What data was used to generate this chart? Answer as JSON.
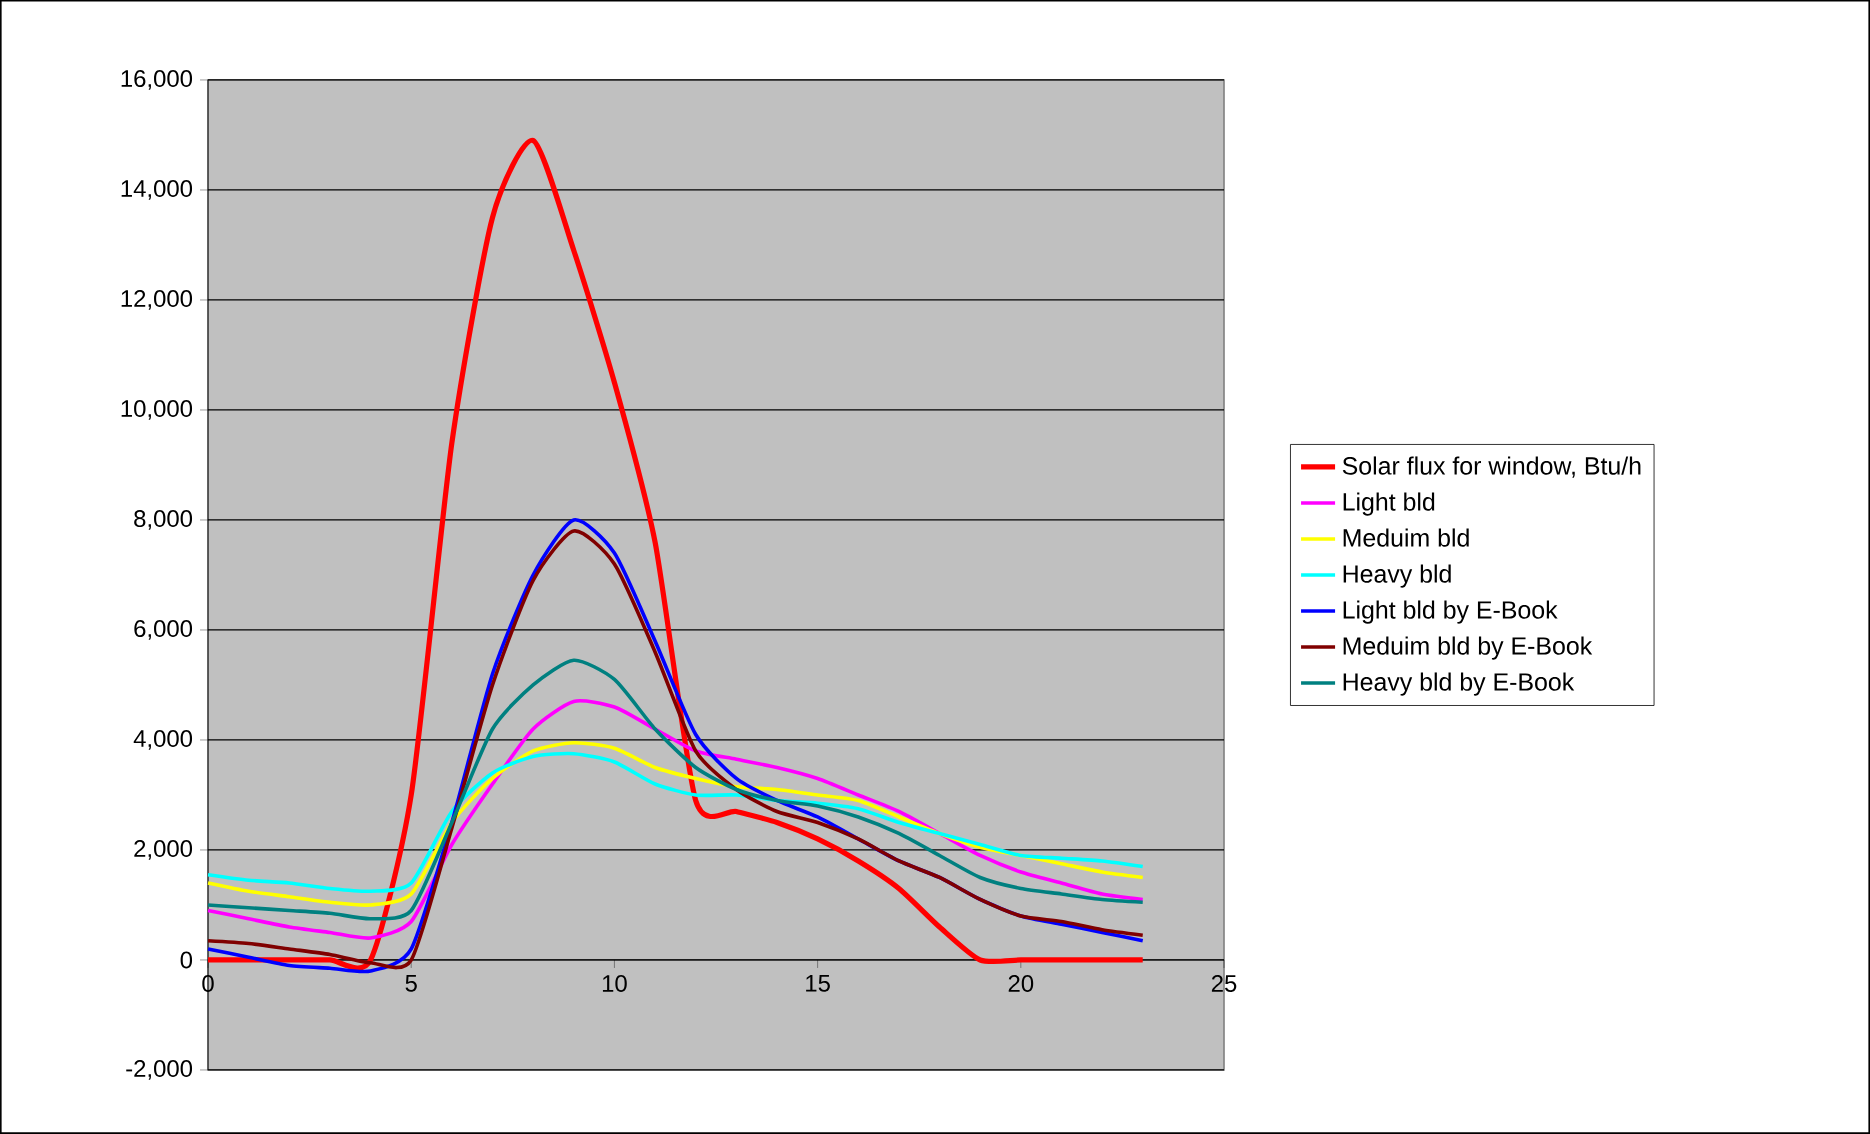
{
  "chart_data": {
    "type": "line",
    "x": [
      0,
      1,
      2,
      3,
      4,
      5,
      6,
      7,
      8,
      9,
      10,
      11,
      12,
      13,
      14,
      15,
      16,
      17,
      18,
      19,
      20,
      21,
      22,
      23
    ],
    "xlim": [
      0,
      25
    ],
    "xticks": [
      0,
      5,
      10,
      15,
      20,
      25
    ],
    "ylim": [
      -2000,
      16000
    ],
    "yticks": [
      {
        "value": -2000,
        "label": "-2,000"
      },
      {
        "value": 0,
        "label": "0"
      },
      {
        "value": 2000,
        "label": "2,000"
      },
      {
        "value": 4000,
        "label": "4,000"
      },
      {
        "value": 6000,
        "label": "6,000"
      },
      {
        "value": 8000,
        "label": "8,000"
      },
      {
        "value": 10000,
        "label": "10,000"
      },
      {
        "value": 12000,
        "label": "12,000"
      },
      {
        "value": 14000,
        "label": "14,000"
      },
      {
        "value": 16000,
        "label": "16,000"
      }
    ],
    "grid": "y",
    "legend": "right",
    "marker": "none",
    "line_style": "solid",
    "series": [
      {
        "name": "Solar flux for window, Btu/h",
        "color": "#ff0000",
        "values": [
          0,
          0,
          0,
          0,
          0,
          3000,
          9400,
          13500,
          14900,
          12900,
          10500,
          7600,
          2900,
          2700,
          2500,
          2200,
          1800,
          1300,
          600,
          0,
          0,
          0,
          0,
          0
        ]
      },
      {
        "name": "Light bld",
        "color": "#ff00ff",
        "values": [
          900,
          750,
          600,
          500,
          400,
          700,
          2100,
          3200,
          4200,
          4700,
          4600,
          4200,
          3800,
          3650,
          3500,
          3300,
          3000,
          2700,
          2300,
          1900,
          1600,
          1400,
          1200,
          1100
        ]
      },
      {
        "name": "Meduim bld",
        "color": "#ffff00",
        "values": [
          1400,
          1250,
          1150,
          1050,
          1000,
          1200,
          2500,
          3300,
          3800,
          3950,
          3850,
          3500,
          3300,
          3150,
          3100,
          3000,
          2900,
          2600,
          2300,
          2050,
          1900,
          1750,
          1600,
          1500
        ]
      },
      {
        "name": "Heavy bld",
        "color": "#00ffff",
        "values": [
          1550,
          1450,
          1400,
          1300,
          1250,
          1400,
          2700,
          3400,
          3700,
          3750,
          3600,
          3200,
          3000,
          3000,
          2900,
          2850,
          2750,
          2500,
          2300,
          2100,
          1900,
          1850,
          1800,
          1700
        ]
      },
      {
        "name": "Light bld by E-Book",
        "color": "#0000ff",
        "values": [
          200,
          50,
          -100,
          -150,
          -200,
          200,
          2500,
          5200,
          7000,
          8000,
          7400,
          5800,
          4100,
          3300,
          2900,
          2600,
          2200,
          1800,
          1500,
          1100,
          800,
          650,
          500,
          350
        ]
      },
      {
        "name": "Meduim bld by E-Book",
        "color": "#800000",
        "values": [
          350,
          300,
          200,
          100,
          -50,
          0,
          2400,
          5000,
          6900,
          7800,
          7200,
          5600,
          3800,
          3100,
          2700,
          2500,
          2200,
          1800,
          1500,
          1100,
          800,
          700,
          550,
          450
        ]
      },
      {
        "name": "Heavy bld by E-Book",
        "color": "#008080",
        "values": [
          1000,
          950,
          900,
          850,
          750,
          900,
          2500,
          4200,
          5000,
          5450,
          5100,
          4200,
          3500,
          3100,
          2900,
          2800,
          2600,
          2300,
          1900,
          1500,
          1300,
          1200,
          1100,
          1050
        ]
      }
    ]
  }
}
